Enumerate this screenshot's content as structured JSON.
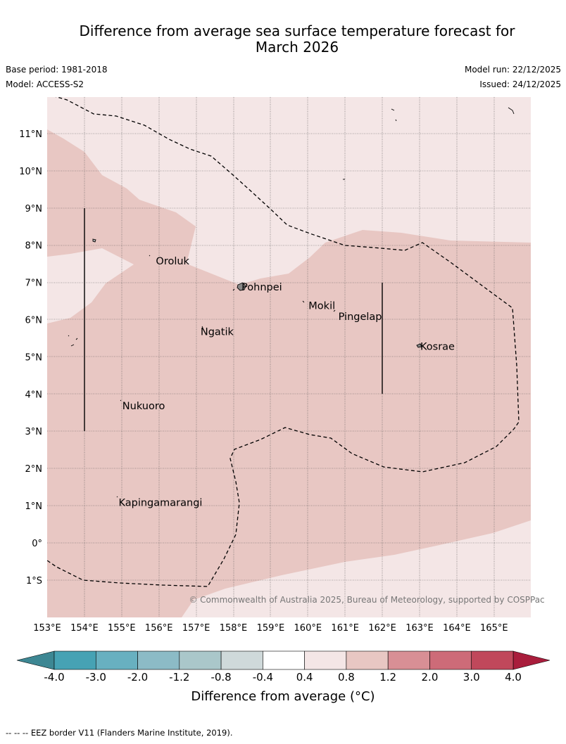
{
  "title_line1": "Difference from average sea surface temperature forecast for",
  "title_line2": "March 2026",
  "base_period": "Base period: 1981-2018",
  "model": "Model: ACCESS-S2",
  "model_run": "Model run: 22/12/2025",
  "issued": "Issued: 24/12/2025",
  "copyright": "© Commonwealth of Australia 2025, Bureau of Meteorology, supported by COSPPac",
  "lon_ticks": [
    "153°E",
    "154°E",
    "155°E",
    "156°E",
    "157°E",
    "158°E",
    "159°E",
    "160°E",
    "161°E",
    "162°E",
    "163°E",
    "164°E",
    "165°E"
  ],
  "lat_ticks": [
    "11°N",
    "10°N",
    "9°N",
    "8°N",
    "7°N",
    "6°N",
    "5°N",
    "4°N",
    "3°N",
    "2°N",
    "1°N",
    "0°",
    "1°S"
  ],
  "places": [
    {
      "name": "Oroluk",
      "lon": 155.9,
      "lat": 7.6
    },
    {
      "name": "Pohnpei",
      "lon": 158.2,
      "lat": 6.9
    },
    {
      "name": "Mokil",
      "lon": 160.0,
      "lat": 6.4
    },
    {
      "name": "Pingelap",
      "lon": 160.8,
      "lat": 6.1
    },
    {
      "name": "Ngatik",
      "lon": 157.1,
      "lat": 5.7
    },
    {
      "name": "Kosrae",
      "lon": 163.0,
      "lat": 5.3
    },
    {
      "name": "Nukuoro",
      "lon": 155.0,
      "lat": 3.7
    },
    {
      "name": "Kapingamarangi",
      "lon": 154.9,
      "lat": 1.1
    }
  ],
  "colorbar": {
    "ticks": [
      "-4.0",
      "-3.0",
      "-2.0",
      "-1.2",
      "-0.8",
      "-0.4",
      "0.4",
      "0.8",
      "1.2",
      "2.0",
      "3.0",
      "4.0"
    ],
    "colors": [
      "#46a2b4",
      "#68b0c0",
      "#8cbbc6",
      "#aac7ca",
      "#cfd9da",
      "#ffffff",
      "#f4e6e6",
      "#e8c7c3",
      "#d88f95",
      "#cd6b78",
      "#c0485b"
    ],
    "under_color": "#3d8793",
    "over_color": "#a91d3c",
    "label": "Difference from average ($^\\circ$C)",
    "label_display": "Difference from average (°C)"
  },
  "footer": "-- -- -- EEZ border V11 (Flanders Marine Institute, 2019)."
}
